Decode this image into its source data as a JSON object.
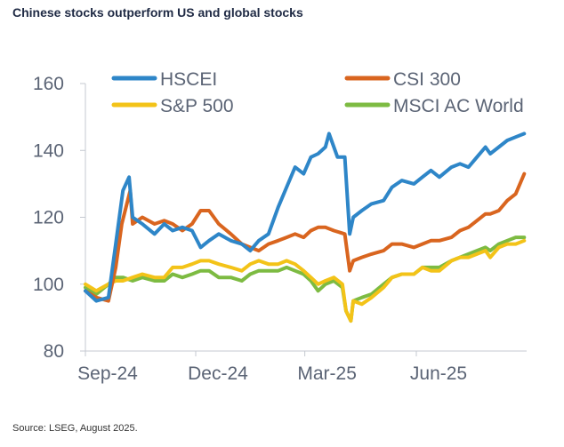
{
  "title": "Chinese stocks outperform US and global stocks",
  "source": "Source: LSEG, August 2025.",
  "chart_data": {
    "type": "line",
    "title": "Chinese stocks outperform US and global stocks",
    "xlabel": "",
    "ylabel": "",
    "ylim": [
      80,
      160
    ],
    "y_ticks": [
      80,
      100,
      120,
      140,
      160
    ],
    "x_range": [
      "2024-09-01",
      "2025-08-31"
    ],
    "x_ticks": [
      {
        "label": "Sep-24",
        "date": "2024-09-01"
      },
      {
        "label": "Dec-24",
        "date": "2024-12-01"
      },
      {
        "label": "Mar-25",
        "date": "2025-03-01"
      },
      {
        "label": "Jun-25",
        "date": "2025-06-01"
      }
    ],
    "legend_position": "top",
    "grid": false,
    "series": [
      {
        "name": "HSCEI",
        "color": "#2e86c8",
        "points": [
          [
            "2024-09-01",
            98
          ],
          [
            "2024-09-10",
            95
          ],
          [
            "2024-09-20",
            96
          ],
          [
            "2024-09-26",
            112
          ],
          [
            "2024-10-02",
            128
          ],
          [
            "2024-10-07",
            132
          ],
          [
            "2024-10-10",
            120
          ],
          [
            "2024-10-18",
            118
          ],
          [
            "2024-10-28",
            115
          ],
          [
            "2024-11-05",
            118
          ],
          [
            "2024-11-12",
            116
          ],
          [
            "2024-11-20",
            117
          ],
          [
            "2024-11-28",
            116
          ],
          [
            "2024-12-05",
            111
          ],
          [
            "2024-12-12",
            113
          ],
          [
            "2024-12-20",
            115
          ],
          [
            "2024-12-30",
            113
          ],
          [
            "2025-01-08",
            112
          ],
          [
            "2025-01-15",
            110
          ],
          [
            "2025-01-22",
            113
          ],
          [
            "2025-01-30",
            115
          ],
          [
            "2025-02-07",
            123
          ],
          [
            "2025-02-14",
            129
          ],
          [
            "2025-02-21",
            135
          ],
          [
            "2025-02-28",
            133
          ],
          [
            "2025-03-06",
            138
          ],
          [
            "2025-03-12",
            139
          ],
          [
            "2025-03-18",
            141
          ],
          [
            "2025-03-21",
            145
          ],
          [
            "2025-03-28",
            138
          ],
          [
            "2025-04-03",
            138
          ],
          [
            "2025-04-07",
            115
          ],
          [
            "2025-04-10",
            120
          ],
          [
            "2025-04-17",
            122
          ],
          [
            "2025-04-25",
            124
          ],
          [
            "2025-05-05",
            125
          ],
          [
            "2025-05-12",
            129
          ],
          [
            "2025-05-20",
            131
          ],
          [
            "2025-05-30",
            130
          ],
          [
            "2025-06-06",
            132
          ],
          [
            "2025-06-13",
            134
          ],
          [
            "2025-06-20",
            132
          ],
          [
            "2025-06-30",
            135
          ],
          [
            "2025-07-07",
            136
          ],
          [
            "2025-07-14",
            135
          ],
          [
            "2025-07-21",
            138
          ],
          [
            "2025-07-28",
            141
          ],
          [
            "2025-08-01",
            139
          ],
          [
            "2025-08-08",
            141
          ],
          [
            "2025-08-15",
            143
          ],
          [
            "2025-08-22",
            144
          ],
          [
            "2025-08-29",
            145
          ]
        ]
      },
      {
        "name": "CSI 300",
        "color": "#d9651f",
        "points": [
          [
            "2024-09-01",
            98
          ],
          [
            "2024-09-10",
            96
          ],
          [
            "2024-09-20",
            95
          ],
          [
            "2024-09-26",
            105
          ],
          [
            "2024-10-01",
            118
          ],
          [
            "2024-10-08",
            128
          ],
          [
            "2024-10-10",
            118
          ],
          [
            "2024-10-18",
            120
          ],
          [
            "2024-10-28",
            118
          ],
          [
            "2024-11-05",
            119
          ],
          [
            "2024-11-12",
            118
          ],
          [
            "2024-11-20",
            116
          ],
          [
            "2024-11-28",
            118
          ],
          [
            "2024-12-05",
            122
          ],
          [
            "2024-12-12",
            122
          ],
          [
            "2024-12-20",
            118
          ],
          [
            "2024-12-30",
            115
          ],
          [
            "2025-01-08",
            112
          ],
          [
            "2025-01-15",
            111
          ],
          [
            "2025-01-22",
            110
          ],
          [
            "2025-01-30",
            112
          ],
          [
            "2025-02-07",
            113
          ],
          [
            "2025-02-14",
            114
          ],
          [
            "2025-02-21",
            115
          ],
          [
            "2025-02-28",
            114
          ],
          [
            "2025-03-06",
            116
          ],
          [
            "2025-03-12",
            117
          ],
          [
            "2025-03-18",
            117
          ],
          [
            "2025-03-25",
            116
          ],
          [
            "2025-04-03",
            115
          ],
          [
            "2025-04-07",
            104
          ],
          [
            "2025-04-10",
            107
          ],
          [
            "2025-04-17",
            108
          ],
          [
            "2025-04-25",
            109
          ],
          [
            "2025-05-05",
            110
          ],
          [
            "2025-05-12",
            112
          ],
          [
            "2025-05-20",
            112
          ],
          [
            "2025-05-30",
            111
          ],
          [
            "2025-06-06",
            112
          ],
          [
            "2025-06-13",
            113
          ],
          [
            "2025-06-20",
            113
          ],
          [
            "2025-06-30",
            114
          ],
          [
            "2025-07-07",
            116
          ],
          [
            "2025-07-14",
            117
          ],
          [
            "2025-07-21",
            119
          ],
          [
            "2025-07-28",
            121
          ],
          [
            "2025-08-01",
            121
          ],
          [
            "2025-08-08",
            122
          ],
          [
            "2025-08-15",
            125
          ],
          [
            "2025-08-22",
            127
          ],
          [
            "2025-08-29",
            133
          ]
        ]
      },
      {
        "name": "S&P 500",
        "color": "#f3c318",
        "points": [
          [
            "2024-09-01",
            100
          ],
          [
            "2024-09-10",
            98
          ],
          [
            "2024-09-20",
            100
          ],
          [
            "2024-09-26",
            101
          ],
          [
            "2024-10-02",
            101
          ],
          [
            "2024-10-10",
            102
          ],
          [
            "2024-10-18",
            103
          ],
          [
            "2024-10-28",
            102
          ],
          [
            "2024-11-05",
            102
          ],
          [
            "2024-11-12",
            105
          ],
          [
            "2024-11-20",
            105
          ],
          [
            "2024-11-28",
            106
          ],
          [
            "2024-12-05",
            107
          ],
          [
            "2024-12-12",
            107
          ],
          [
            "2024-12-20",
            106
          ],
          [
            "2024-12-30",
            105
          ],
          [
            "2025-01-08",
            104
          ],
          [
            "2025-01-15",
            106
          ],
          [
            "2025-01-22",
            107
          ],
          [
            "2025-01-30",
            106
          ],
          [
            "2025-02-07",
            106
          ],
          [
            "2025-02-14",
            107
          ],
          [
            "2025-02-21",
            106
          ],
          [
            "2025-02-28",
            104
          ],
          [
            "2025-03-06",
            102
          ],
          [
            "2025-03-12",
            100
          ],
          [
            "2025-03-18",
            101
          ],
          [
            "2025-03-25",
            102
          ],
          [
            "2025-04-01",
            100
          ],
          [
            "2025-04-04",
            92
          ],
          [
            "2025-04-08",
            89
          ],
          [
            "2025-04-10",
            95
          ],
          [
            "2025-04-17",
            94
          ],
          [
            "2025-04-25",
            96
          ],
          [
            "2025-05-05",
            99
          ],
          [
            "2025-05-12",
            102
          ],
          [
            "2025-05-20",
            103
          ],
          [
            "2025-05-30",
            103
          ],
          [
            "2025-06-06",
            105
          ],
          [
            "2025-06-13",
            104
          ],
          [
            "2025-06-20",
            104
          ],
          [
            "2025-06-30",
            107
          ],
          [
            "2025-07-07",
            108
          ],
          [
            "2025-07-14",
            108
          ],
          [
            "2025-07-21",
            109
          ],
          [
            "2025-07-28",
            110
          ],
          [
            "2025-08-01",
            108
          ],
          [
            "2025-08-08",
            111
          ],
          [
            "2025-08-15",
            112
          ],
          [
            "2025-08-22",
            112
          ],
          [
            "2025-08-29",
            113
          ]
        ]
      },
      {
        "name": "MSCI AC World",
        "color": "#7dbb42",
        "points": [
          [
            "2024-09-01",
            99
          ],
          [
            "2024-09-10",
            97
          ],
          [
            "2024-09-20",
            100
          ],
          [
            "2024-09-26",
            102
          ],
          [
            "2024-10-02",
            102
          ],
          [
            "2024-10-10",
            101
          ],
          [
            "2024-10-18",
            102
          ],
          [
            "2024-10-28",
            101
          ],
          [
            "2024-11-05",
            101
          ],
          [
            "2024-11-12",
            103
          ],
          [
            "2024-11-20",
            102
          ],
          [
            "2024-11-28",
            103
          ],
          [
            "2024-12-05",
            104
          ],
          [
            "2024-12-12",
            104
          ],
          [
            "2024-12-20",
            102
          ],
          [
            "2024-12-30",
            102
          ],
          [
            "2025-01-08",
            101
          ],
          [
            "2025-01-15",
            103
          ],
          [
            "2025-01-22",
            104
          ],
          [
            "2025-01-30",
            104
          ],
          [
            "2025-02-07",
            104
          ],
          [
            "2025-02-14",
            105
          ],
          [
            "2025-02-21",
            104
          ],
          [
            "2025-02-28",
            103
          ],
          [
            "2025-03-06",
            101
          ],
          [
            "2025-03-12",
            98
          ],
          [
            "2025-03-18",
            100
          ],
          [
            "2025-03-25",
            101
          ],
          [
            "2025-04-01",
            99
          ],
          [
            "2025-04-04",
            92
          ],
          [
            "2025-04-08",
            89
          ],
          [
            "2025-04-10",
            95
          ],
          [
            "2025-04-17",
            96
          ],
          [
            "2025-04-25",
            97
          ],
          [
            "2025-05-05",
            100
          ],
          [
            "2025-05-12",
            102
          ],
          [
            "2025-05-20",
            103
          ],
          [
            "2025-05-30",
            103
          ],
          [
            "2025-06-06",
            105
          ],
          [
            "2025-06-13",
            105
          ],
          [
            "2025-06-20",
            105
          ],
          [
            "2025-06-30",
            107
          ],
          [
            "2025-07-07",
            108
          ],
          [
            "2025-07-14",
            109
          ],
          [
            "2025-07-21",
            110
          ],
          [
            "2025-07-28",
            111
          ],
          [
            "2025-08-01",
            110
          ],
          [
            "2025-08-08",
            112
          ],
          [
            "2025-08-15",
            113
          ],
          [
            "2025-08-22",
            114
          ],
          [
            "2025-08-29",
            114
          ]
        ]
      }
    ]
  }
}
